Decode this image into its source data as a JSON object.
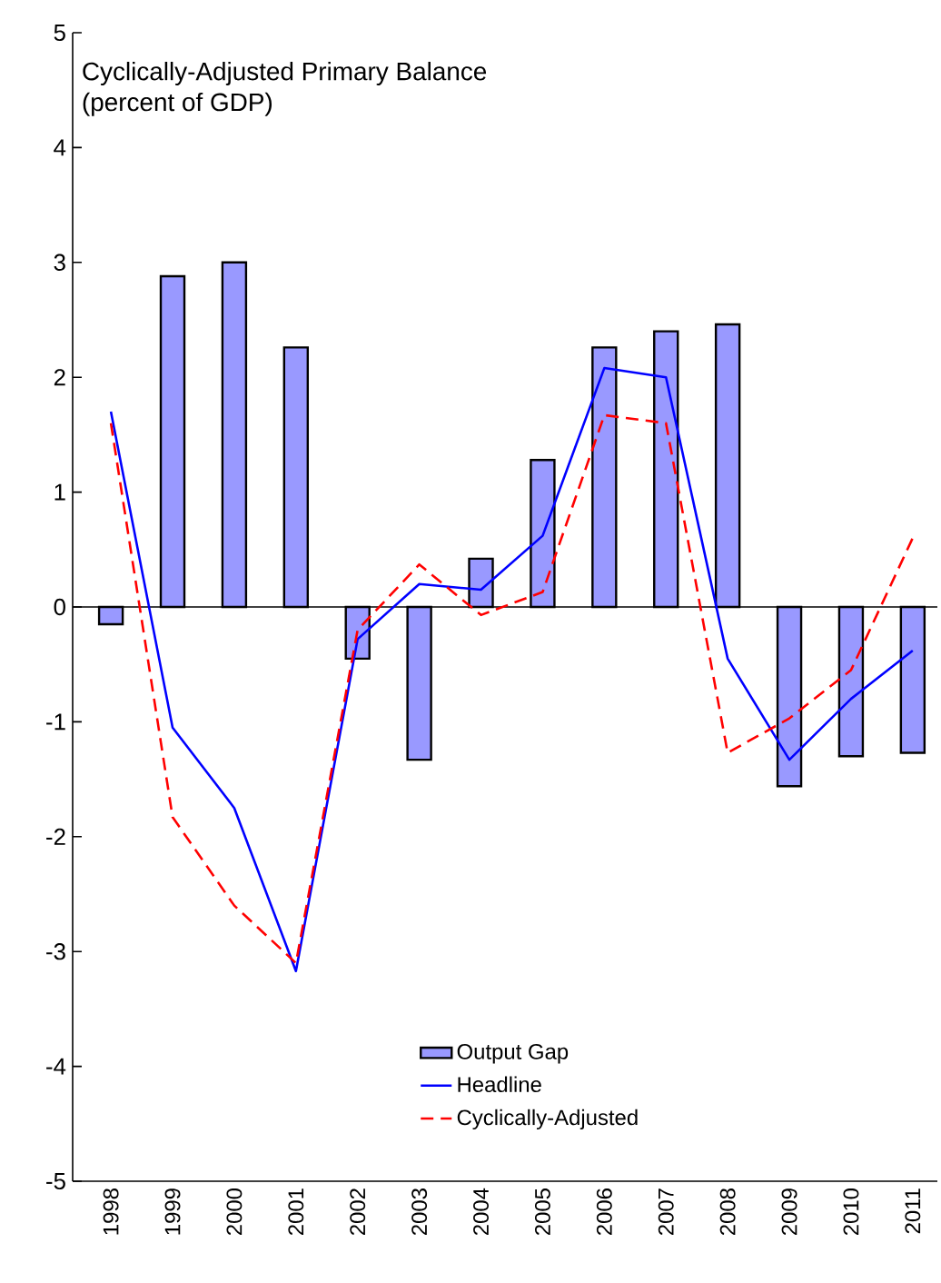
{
  "chart_data": {
    "type": "bar",
    "title": "Cyclically-Adjusted Primary Balance",
    "subtitle": "(percent of GDP)",
    "categories": [
      "1998",
      "1999",
      "2000",
      "2001",
      "2002",
      "2003",
      "2004",
      "2005",
      "2006",
      "2007",
      "2008",
      "2009",
      "2010",
      "2011"
    ],
    "series": [
      {
        "name": "Output Gap",
        "color": "#9999ff",
        "values": [
          -0.15,
          2.88,
          3.0,
          2.26,
          -0.45,
          -1.33,
          0.42,
          1.28,
          2.26,
          2.4,
          2.46,
          -1.56,
          -1.3,
          -1.27
        ]
      },
      {
        "name": "Headline",
        "type": "line",
        "color": "#0000ff",
        "line_style": "solid",
        "values": [
          1.7,
          -1.05,
          -1.75,
          -3.17,
          -0.28,
          0.2,
          0.15,
          0.62,
          2.08,
          2.0,
          -0.45,
          -1.33,
          -0.8,
          -0.38
        ]
      },
      {
        "name": "Cyclically-Adjusted",
        "type": "line",
        "color": "#ff0000",
        "line_style": "dashed",
        "values": [
          1.6,
          -1.83,
          -2.6,
          -3.1,
          -0.2,
          0.37,
          -0.07,
          0.13,
          1.67,
          1.6,
          -1.27,
          -0.97,
          -0.55,
          0.6
        ]
      }
    ],
    "ylim": [
      -5,
      5
    ],
    "yticks": [
      -5,
      -4,
      -3,
      -2,
      -1,
      0,
      1,
      2,
      3,
      4,
      5
    ],
    "legend": "bottom",
    "marker": "none"
  }
}
